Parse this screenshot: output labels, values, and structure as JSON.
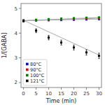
{
  "chart_data": {
    "type": "scatter",
    "xlabel": "Time (min)",
    "ylabel": "1/[GABA]",
    "xlim": [
      -1,
      31
    ],
    "ylim": [
      1.8,
      5.2
    ],
    "xticks": [
      0,
      5,
      10,
      15,
      20,
      25,
      30
    ],
    "yticks": [
      2,
      3,
      4,
      5
    ],
    "grid": false,
    "legend": "lower left",
    "series": [
      {
        "type": "line",
        "color": "#aaaaaa",
        "x": [
          0,
          30
        ],
        "values": [
          4.505,
          4.571
        ]
      },
      {
        "type": "line",
        "color": "#aaaaaa",
        "x": [
          0,
          30
        ],
        "values": [
          4.505,
          4.604
        ]
      },
      {
        "type": "line",
        "color": "#aaaaaa",
        "x": [
          0,
          30
        ],
        "values": [
          4.505,
          4.634
        ]
      },
      {
        "type": "line",
        "color": "#aaaaaa",
        "x": [
          0,
          30
        ],
        "values": [
          4.52,
          3.116
        ]
      },
      {
        "name": "80°C",
        "type": "scatter",
        "color": "blue",
        "marker": "square",
        "x": [
          0,
          5,
          10,
          15,
          20,
          25,
          30
        ],
        "values": [
          4.5,
          4.52,
          4.53,
          4.54,
          4.55,
          4.56,
          4.57
        ],
        "errors": [
          0.04,
          0.04,
          0.04,
          0.04,
          0.04,
          0.04,
          0.04
        ]
      },
      {
        "name": "90°C",
        "type": "scatter",
        "color": "red",
        "marker": "square",
        "x": [
          0,
          5,
          10,
          15,
          20,
          25,
          30
        ],
        "values": [
          4.5,
          4.53,
          4.55,
          4.57,
          4.58,
          4.59,
          4.6
        ],
        "errors": [
          0.04,
          0.04,
          0.04,
          0.04,
          0.04,
          0.04,
          0.04
        ]
      },
      {
        "name": "100°C",
        "type": "scatter",
        "color": "green",
        "marker": "square",
        "x": [
          0,
          5,
          10,
          15,
          20,
          25,
          30
        ],
        "values": [
          4.5,
          4.53,
          4.56,
          4.58,
          4.6,
          4.62,
          4.63
        ],
        "errors": [
          0.04,
          0.04,
          0.04,
          0.04,
          0.04,
          0.04,
          0.04
        ]
      },
      {
        "name": "121°C",
        "type": "scatter",
        "color": "black",
        "marker": "square",
        "x": [
          0,
          5,
          10,
          15,
          20,
          25,
          30
        ],
        "values": [
          4.5,
          4.1,
          3.82,
          3.62,
          3.42,
          3.22,
          3.08
        ],
        "errors": [
          0.05,
          0.08,
          0.09,
          0.1,
          0.1,
          0.11,
          0.11
        ]
      }
    ]
  }
}
